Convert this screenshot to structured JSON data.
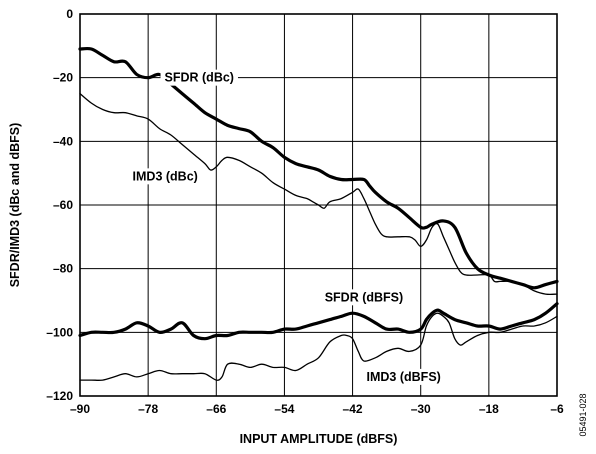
{
  "chart_data": {
    "type": "line",
    "xlabel": "INPUT AMPLITUDE (dBFS)",
    "ylabel": "SFDR/IMD3 (dBc and dBFS)",
    "xlim": [
      -90,
      -6
    ],
    "ylim": [
      -120,
      0
    ],
    "x_ticks": [
      -90,
      -78,
      -66,
      -54,
      -42,
      -30,
      -18,
      -6
    ],
    "y_ticks": [
      0,
      -20,
      -40,
      -60,
      -80,
      -100,
      -120
    ],
    "grid": true,
    "figure_id": "05491-028",
    "series": [
      {
        "name": "SFDR (dBc)",
        "weight": "bold",
        "label_pos": [
          -69,
          -20
        ],
        "points": [
          [
            -90,
            -11
          ],
          [
            -88,
            -11
          ],
          [
            -86,
            -13
          ],
          [
            -84,
            -15
          ],
          [
            -82,
            -15
          ],
          [
            -80,
            -19
          ],
          [
            -78,
            -20
          ],
          [
            -76,
            -19
          ],
          [
            -74,
            -22
          ],
          [
            -72,
            -25
          ],
          [
            -70,
            -28
          ],
          [
            -68,
            -31
          ],
          [
            -66,
            -33
          ],
          [
            -64,
            -35
          ],
          [
            -62,
            -36
          ],
          [
            -60,
            -37
          ],
          [
            -58,
            -40
          ],
          [
            -56,
            -42
          ],
          [
            -54,
            -45
          ],
          [
            -52,
            -47
          ],
          [
            -50,
            -48
          ],
          [
            -48,
            -49
          ],
          [
            -46,
            -51
          ],
          [
            -44,
            -52
          ],
          [
            -42,
            -52
          ],
          [
            -40,
            -52
          ],
          [
            -39,
            -54
          ],
          [
            -38,
            -56
          ],
          [
            -36,
            -59
          ],
          [
            -34,
            -61
          ],
          [
            -32,
            -64
          ],
          [
            -30,
            -67
          ],
          [
            -29,
            -67
          ],
          [
            -28,
            -66
          ],
          [
            -26,
            -65
          ],
          [
            -24,
            -67
          ],
          [
            -22,
            -75
          ],
          [
            -20,
            -80
          ],
          [
            -18,
            -82
          ],
          [
            -16,
            -83
          ],
          [
            -14,
            -84
          ],
          [
            -12,
            -85
          ],
          [
            -10,
            -86
          ],
          [
            -8,
            -85
          ],
          [
            -6,
            -84
          ]
        ]
      },
      {
        "name": "IMD3 (dBc)",
        "weight": "normal",
        "label_pos": [
          -75,
          -51
        ],
        "points": [
          [
            -90,
            -25
          ],
          [
            -88,
            -28
          ],
          [
            -86,
            -30
          ],
          [
            -84,
            -31
          ],
          [
            -82,
            -31
          ],
          [
            -80,
            -32
          ],
          [
            -78,
            -33
          ],
          [
            -76,
            -36
          ],
          [
            -74,
            -38
          ],
          [
            -72,
            -41
          ],
          [
            -70,
            -44
          ],
          [
            -68,
            -47
          ],
          [
            -67,
            -49
          ],
          [
            -66,
            -48
          ],
          [
            -65,
            -46
          ],
          [
            -64,
            -45
          ],
          [
            -62,
            -46
          ],
          [
            -60,
            -48
          ],
          [
            -58,
            -50
          ],
          [
            -56,
            -53
          ],
          [
            -54,
            -55
          ],
          [
            -52,
            -57
          ],
          [
            -50,
            -58
          ],
          [
            -49,
            -59
          ],
          [
            -48,
            -60
          ],
          [
            -47,
            -61
          ],
          [
            -46,
            -59
          ],
          [
            -44,
            -58
          ],
          [
            -42,
            -56
          ],
          [
            -41,
            -55
          ],
          [
            -40,
            -58
          ],
          [
            -39,
            -62
          ],
          [
            -38,
            -66
          ],
          [
            -37,
            -69
          ],
          [
            -36,
            -70
          ],
          [
            -34,
            -70
          ],
          [
            -32,
            -70
          ],
          [
            -31,
            -71
          ],
          [
            -30,
            -73
          ],
          [
            -29,
            -71
          ],
          [
            -28,
            -67
          ],
          [
            -27,
            -66
          ],
          [
            -26,
            -70
          ],
          [
            -25,
            -74
          ],
          [
            -24,
            -78
          ],
          [
            -23,
            -81
          ],
          [
            -22,
            -82
          ],
          [
            -20,
            -82
          ],
          [
            -18,
            -82
          ],
          [
            -17,
            -84
          ],
          [
            -16,
            -84
          ],
          [
            -14,
            -84
          ],
          [
            -12,
            -85
          ],
          [
            -10,
            -87
          ],
          [
            -8,
            -88
          ],
          [
            -6,
            -88
          ]
        ]
      },
      {
        "name": "SFDR (dBFS)",
        "weight": "bold",
        "label_pos": [
          -40,
          -89
        ],
        "points": [
          [
            -90,
            -101
          ],
          [
            -88,
            -100
          ],
          [
            -86,
            -100
          ],
          [
            -84,
            -100
          ],
          [
            -82,
            -99
          ],
          [
            -80,
            -97
          ],
          [
            -78,
            -98
          ],
          [
            -76,
            -100
          ],
          [
            -74,
            -99
          ],
          [
            -72,
            -97
          ],
          [
            -70,
            -101
          ],
          [
            -68,
            -102
          ],
          [
            -66,
            -101
          ],
          [
            -64,
            -101
          ],
          [
            -62,
            -100
          ],
          [
            -60,
            -100
          ],
          [
            -58,
            -100
          ],
          [
            -56,
            -100
          ],
          [
            -54,
            -99
          ],
          [
            -52,
            -99
          ],
          [
            -50,
            -98
          ],
          [
            -48,
            -97
          ],
          [
            -46,
            -96
          ],
          [
            -44,
            -95
          ],
          [
            -42,
            -94
          ],
          [
            -40,
            -95
          ],
          [
            -38,
            -97
          ],
          [
            -36,
            -99
          ],
          [
            -34,
            -99
          ],
          [
            -32,
            -100
          ],
          [
            -30,
            -99
          ],
          [
            -29,
            -96
          ],
          [
            -28,
            -94
          ],
          [
            -27,
            -93
          ],
          [
            -26,
            -94
          ],
          [
            -24,
            -96
          ],
          [
            -22,
            -97
          ],
          [
            -20,
            -98
          ],
          [
            -18,
            -98
          ],
          [
            -16,
            -99
          ],
          [
            -14,
            -98
          ],
          [
            -12,
            -97
          ],
          [
            -10,
            -96
          ],
          [
            -8,
            -94
          ],
          [
            -6,
            -91
          ]
        ]
      },
      {
        "name": "IMD3 (dBFS)",
        "weight": "normal",
        "label_pos": [
          -33,
          -114
        ],
        "points": [
          [
            -90,
            -115
          ],
          [
            -88,
            -115
          ],
          [
            -86,
            -115
          ],
          [
            -84,
            -114
          ],
          [
            -82,
            -113
          ],
          [
            -80,
            -114
          ],
          [
            -78,
            -113
          ],
          [
            -76,
            -112
          ],
          [
            -74,
            -113
          ],
          [
            -72,
            -113
          ],
          [
            -70,
            -113
          ],
          [
            -68,
            -113
          ],
          [
            -66,
            -115
          ],
          [
            -65,
            -114
          ],
          [
            -64,
            -110
          ],
          [
            -62,
            -110
          ],
          [
            -60,
            -111
          ],
          [
            -58,
            -110
          ],
          [
            -56,
            -111
          ],
          [
            -54,
            -111
          ],
          [
            -52,
            -112
          ],
          [
            -50,
            -110
          ],
          [
            -48,
            -108
          ],
          [
            -46,
            -103
          ],
          [
            -44,
            -101
          ],
          [
            -43,
            -101
          ],
          [
            -42,
            -102
          ],
          [
            -41,
            -106
          ],
          [
            -40,
            -109
          ],
          [
            -38,
            -108
          ],
          [
            -36,
            -106
          ],
          [
            -34,
            -105
          ],
          [
            -32,
            -106
          ],
          [
            -30,
            -104
          ],
          [
            -29,
            -98
          ],
          [
            -28,
            -95
          ],
          [
            -27,
            -94
          ],
          [
            -26,
            -95
          ],
          [
            -25,
            -97
          ],
          [
            -24,
            -102
          ],
          [
            -23,
            -104
          ],
          [
            -22,
            -103
          ],
          [
            -20,
            -101
          ],
          [
            -18,
            -100
          ],
          [
            -16,
            -100
          ],
          [
            -14,
            -99
          ],
          [
            -12,
            -98
          ],
          [
            -10,
            -98
          ],
          [
            -8,
            -97
          ],
          [
            -6,
            -95
          ]
        ]
      }
    ]
  }
}
